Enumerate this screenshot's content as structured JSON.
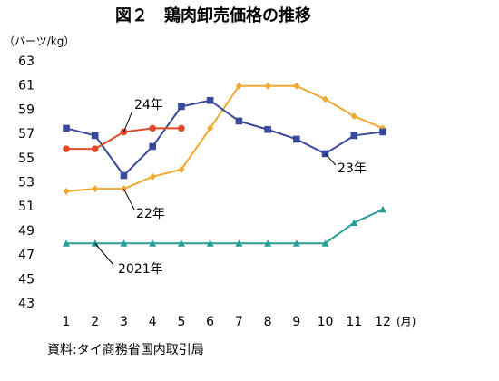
{
  "chart_data": {
    "type": "line",
    "title": "図２　鶏肉卸売価格の推移",
    "y_label": "（バーツ/kg）",
    "x_label": "(月)",
    "source": "資料:タイ商務省国内取引局",
    "categories": [
      "1",
      "2",
      "3",
      "4",
      "5",
      "6",
      "7",
      "8",
      "9",
      "10",
      "11",
      "12"
    ],
    "ylim": [
      43,
      63
    ],
    "yticks": [
      43,
      45,
      47,
      49,
      51,
      53,
      55,
      57,
      59,
      61,
      63
    ],
    "series": [
      {
        "name": "2021年",
        "color": "#2a9d96",
        "marker": "triangle",
        "values": [
          48,
          48,
          48,
          48,
          48,
          48,
          48,
          48,
          48,
          48,
          49.7,
          50.8
        ]
      },
      {
        "name": "22年",
        "color": "#f0a830",
        "marker": "diamond",
        "values": [
          52.3,
          52.5,
          52.5,
          53.5,
          54.1,
          57.5,
          61,
          61,
          61,
          59.9,
          58.5,
          57.5
        ]
      },
      {
        "name": "23年",
        "color": "#3a4a9a",
        "marker": "square",
        "values": [
          57.5,
          56.9,
          53.6,
          56,
          59.3,
          59.8,
          58.1,
          57.4,
          56.6,
          55.4,
          56.9,
          57.2
        ]
      },
      {
        "name": "24年",
        "color": "#e04a2a",
        "marker": "circle",
        "values": [
          55.8,
          55.8,
          57.2,
          57.5,
          57.5,
          null,
          null,
          null,
          null,
          null,
          null,
          null
        ]
      }
    ]
  }
}
